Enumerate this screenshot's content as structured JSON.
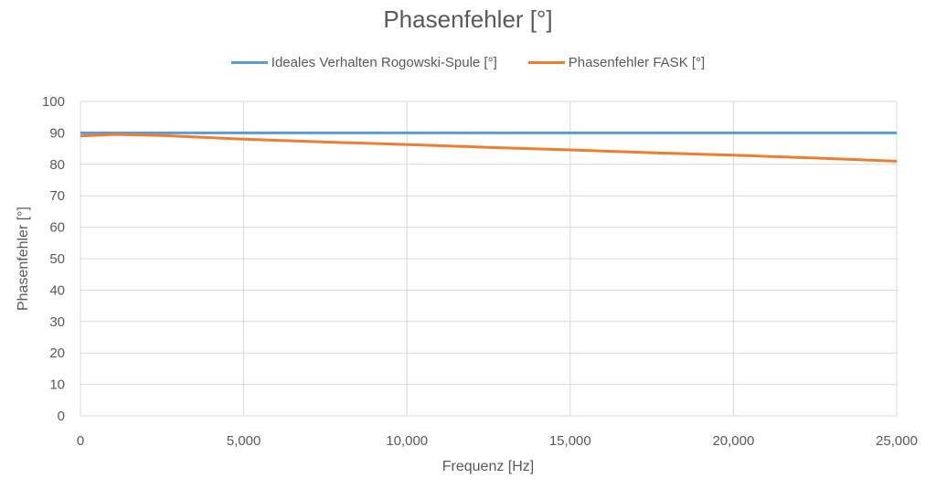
{
  "chart_data": {
    "type": "line",
    "title": "Phasenfehler [°]",
    "xlabel": "Frequenz [Hz]",
    "ylabel": "Phasenfehler [°]",
    "xlim": [
      0,
      25000
    ],
    "ylim": [
      0,
      100
    ],
    "x_ticks": [
      "0",
      "5,000",
      "10,000",
      "15,000",
      "20,000",
      "25,000"
    ],
    "y_ticks": [
      "0",
      "10",
      "20",
      "30",
      "40",
      "50",
      "60",
      "70",
      "80",
      "90",
      "100"
    ],
    "grid": true,
    "legend_position": "top",
    "x": [
      0,
      1000,
      2500,
      5000,
      7500,
      10000,
      12500,
      15000,
      17500,
      20000,
      22500,
      25000
    ],
    "series": [
      {
        "name": "Ideales Verhalten Rogowski-Spule [°]",
        "color": "#5B9BD5",
        "values": [
          90,
          90,
          90,
          90,
          90,
          90,
          90,
          90,
          90,
          90,
          90,
          90
        ]
      },
      {
        "name": "Phasenfehler FASK [°]",
        "color": "#ED7D31",
        "values": [
          89.0,
          89.5,
          89.2,
          88.0,
          87.1,
          86.3,
          85.4,
          84.6,
          83.7,
          82.9,
          82.0,
          81.0
        ]
      }
    ]
  }
}
